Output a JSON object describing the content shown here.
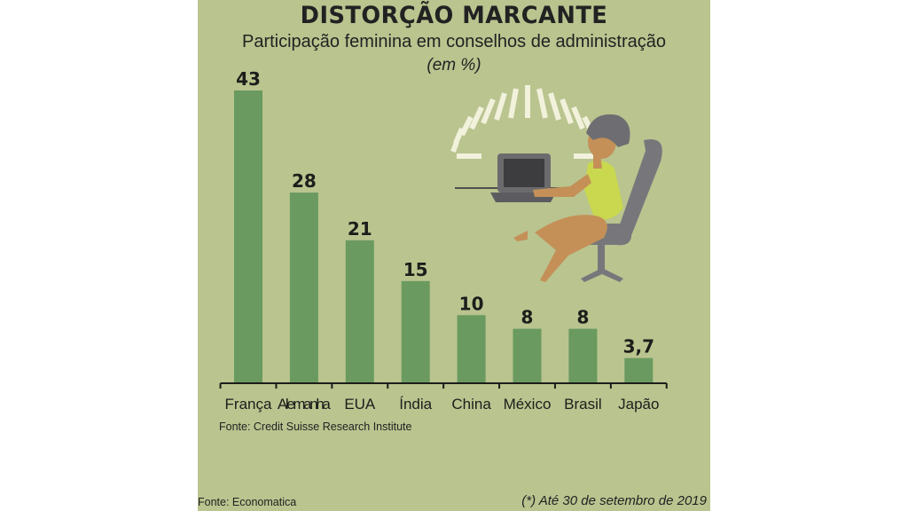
{
  "header": {
    "title": "DISTORÇÃO MARCANTE",
    "subtitle": "Participação feminina em conselhos de administração",
    "unit": "(em %)"
  },
  "chart_data": {
    "type": "bar",
    "categories": [
      "França",
      "Alemanha",
      "EUA",
      "Índia",
      "China",
      "México",
      "Brasil",
      "Japão"
    ],
    "values": [
      43,
      28,
      21,
      15,
      10,
      8,
      8,
      3.7
    ],
    "value_labels": [
      "43",
      "28",
      "21",
      "15",
      "10",
      "8",
      "8",
      "3,7"
    ],
    "title": "DISTORÇÃO MARCANTE",
    "subtitle": "Participação feminina em conselhos de administração",
    "ylabel": "(em %)",
    "ylim": [
      0,
      43
    ],
    "grid": false,
    "bar_color": "#6a9a5f",
    "background_color": "#b9c48f"
  },
  "sources": {
    "chart": "Fonte: Credit Suisse Research Institute",
    "footer": "Fonte: Economatica",
    "note": "(*) Até 30 de setembro de 2019"
  },
  "illustration": {
    "icon": "woman-at-laptop-illustration"
  }
}
